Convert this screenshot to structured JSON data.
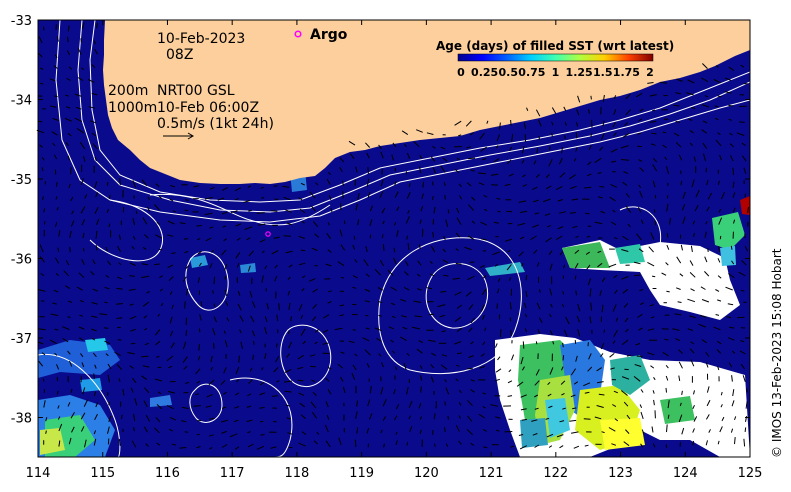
{
  "map": {
    "date_label": "10-Feb-2023",
    "time_label": "08Z",
    "contour_label_200": "200m",
    "contour_label_1000": "1000m",
    "product_label": "NRT00 GSL",
    "product_time": "10-Feb 06:00Z",
    "scale_label": "0.5m/s (1kt 24h)",
    "argo_label": "Argo",
    "credit": "© IMOS 13-Feb-2023 15:08 Hobart",
    "colors": {
      "ocean": "#0a0a8c",
      "land": "#fccf9c",
      "cloud": "#ffffff",
      "contour": "#ffffff",
      "argo": "#ff00ff"
    }
  },
  "axes": {
    "x_ticks": [
      "114",
      "115",
      "116",
      "117",
      "118",
      "119",
      "120",
      "121",
      "122",
      "123",
      "124",
      "125"
    ],
    "y_ticks": [
      "-33",
      "-34",
      "-35",
      "-36",
      "-37",
      "-38"
    ]
  },
  "colorbar": {
    "title": "Age (days) of filled SST (wrt latest)",
    "ticks": [
      "0",
      "0.25",
      "0.5",
      "0.75",
      "1",
      "1.25",
      "1.5",
      "1.75",
      "2"
    ],
    "colors": [
      "#00008f",
      "#0000ff",
      "#0080ff",
      "#00ffff",
      "#80ff80",
      "#ffff00",
      "#ff8000",
      "#ff0000",
      "#800000"
    ]
  }
}
